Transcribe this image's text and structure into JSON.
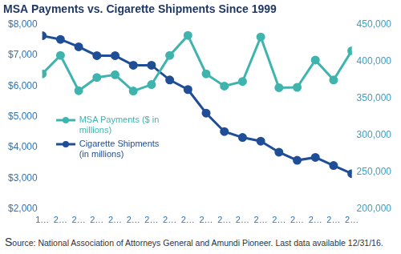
{
  "chart_data": {
    "type": "line",
    "title": "MSA Payments vs. Cigarette Shipments Since 1999",
    "categories": [
      "1…",
      "2…",
      "2…",
      "2…",
      "2…",
      "2…",
      "2…",
      "2…",
      "2…",
      "2…",
      "2…",
      "2…",
      "2…",
      "2…",
      "2…",
      "2…",
      "2…",
      "2…"
    ],
    "series": [
      {
        "name": "MSA Payments ($ in millions)",
        "color": "#3fb4ae",
        "marker": "circle",
        "values": [
          6400,
          7000,
          5850,
          6280,
          6370,
          5840,
          6050,
          7000,
          7650,
          6400,
          6000,
          6150,
          7600,
          5950,
          5960,
          6850,
          6200,
          7150
        ]
      },
      {
        "name": "Cigarette Shipments (in millions)",
        "color": "#1f4e97",
        "marker": "circle",
        "axis": "y2",
        "values": [
          435000,
          430000,
          420000,
          408000,
          408000,
          395000,
          395000,
          375000,
          362000,
          330000,
          305000,
          297000,
          292000,
          277000,
          266000,
          270000,
          259000,
          248000
        ]
      }
    ],
    "ylim": [
      2000,
      8000
    ],
    "yticks": [
      {
        "value": 2000,
        "label": "$2,000"
      },
      {
        "value": 3000,
        "label": "$3,000"
      },
      {
        "value": 4000,
        "label": "$4,000"
      },
      {
        "value": 5000,
        "label": "$5,000"
      },
      {
        "value": 6000,
        "label": "$6,000"
      },
      {
        "value": 7000,
        "label": "$7,000"
      },
      {
        "value": 8000,
        "label": "$8,000"
      }
    ],
    "y2lim": [
      200000,
      450000
    ],
    "y2ticks": [
      {
        "value": 200000,
        "label": "200,000"
      },
      {
        "value": 250000,
        "label": "250,000"
      },
      {
        "value": 300000,
        "label": "300,000"
      },
      {
        "value": 350000,
        "label": "350,000"
      },
      {
        "value": 400000,
        "label": "400,000"
      },
      {
        "value": 450000,
        "label": "450,000"
      }
    ],
    "grid": false,
    "legend": "left",
    "source": "Source: National Association of Attorneys General and Amundi Pioneer. Last data available 12/31/16."
  }
}
